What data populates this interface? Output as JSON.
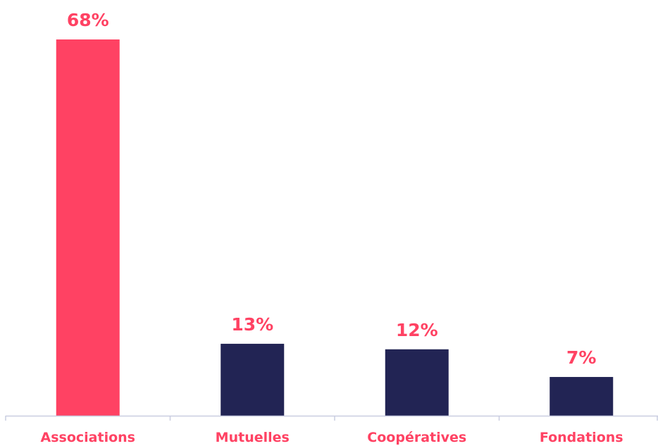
{
  "chart_data": {
    "type": "bar",
    "categories": [
      "Associations",
      "Mutuelles",
      "Coopératives",
      "Fondations"
    ],
    "values": [
      68,
      13,
      12,
      7
    ],
    "value_labels": [
      "68%",
      "13%",
      "12%",
      "7%"
    ],
    "ylim": [
      0,
      68
    ],
    "grid": false,
    "legend": "none",
    "colors": {
      "highlight_bar": "#ff4263",
      "bar": "#222454",
      "data_label": "#ff4263",
      "category_label": "#ff4263",
      "axis": "#c9cde0"
    },
    "highlight_index": 0
  }
}
